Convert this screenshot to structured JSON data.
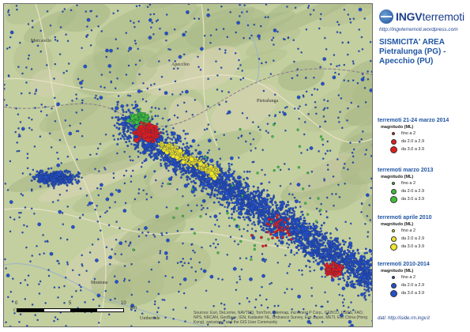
{
  "header": {
    "logo_prefix": "INGV",
    "logo_suffix": "terremoti",
    "logo_url": "http://ingvterremoti.wordpress.com",
    "title": "SISMICITA' AREA Pietralunga (PG) - Apecchio (PU)"
  },
  "legend": [
    {
      "title": "terremoti 21-24 marzo 2014",
      "subtitle": "magnitudo (ML)",
      "color": "#e21d1d",
      "items": [
        {
          "label": "fino a 2",
          "size": "small"
        },
        {
          "label": "da 2.0 a 2.9",
          "size": "medium"
        },
        {
          "label": "da 3.0 a 3.9",
          "size": "large"
        }
      ]
    },
    {
      "title": "terremoti marzo 2013",
      "subtitle": "magnitudo (ML)",
      "color": "#3fbf3a",
      "items": [
        {
          "label": "fino a 2",
          "size": "small"
        },
        {
          "label": "da 2.0 a 2.9",
          "size": "medium"
        },
        {
          "label": "da 3.0 a 3.9",
          "size": "large"
        }
      ]
    },
    {
      "title": "terremoti aprile 2010",
      "subtitle": "magnitudo (ML)",
      "color": "#f2e62a",
      "items": [
        {
          "label": "fino a 2",
          "size": "small"
        },
        {
          "label": "da 2.0 a 2.9",
          "size": "medium"
        },
        {
          "label": "da 3.0 a 3.9",
          "size": "large"
        }
      ]
    },
    {
      "title": "terremoti 2010-2014",
      "subtitle": "magnitudo (ML)",
      "color": "#2450c8",
      "items": [
        {
          "label": "fino a 2",
          "size": "small"
        },
        {
          "label": "da 2.0 a 2.9",
          "size": "medium"
        },
        {
          "label": "da 3.0 a 3.9",
          "size": "large"
        }
      ]
    }
  ],
  "source": "dati: http://iside.rm.ingv.it",
  "map": {
    "towns": [
      "Mercatello",
      "Apecchio",
      "Montone",
      "Pietralunga",
      "Umbertide",
      "Citerna"
    ],
    "scale_labels": [
      "0",
      "5",
      "10",
      "km"
    ],
    "credits": "Sources: Esri, DeLorme, NAVTEQ, TomTom, Intermap, increment P Corp., GEBCO, USGS, FAO, NPS, NRCAN, GeoBase, IGN, Kadaster NL, Ordnance Survey, Esri Japan, METI, Esri China (Hong Kong), swisstopo, and the GIS User Community"
  }
}
